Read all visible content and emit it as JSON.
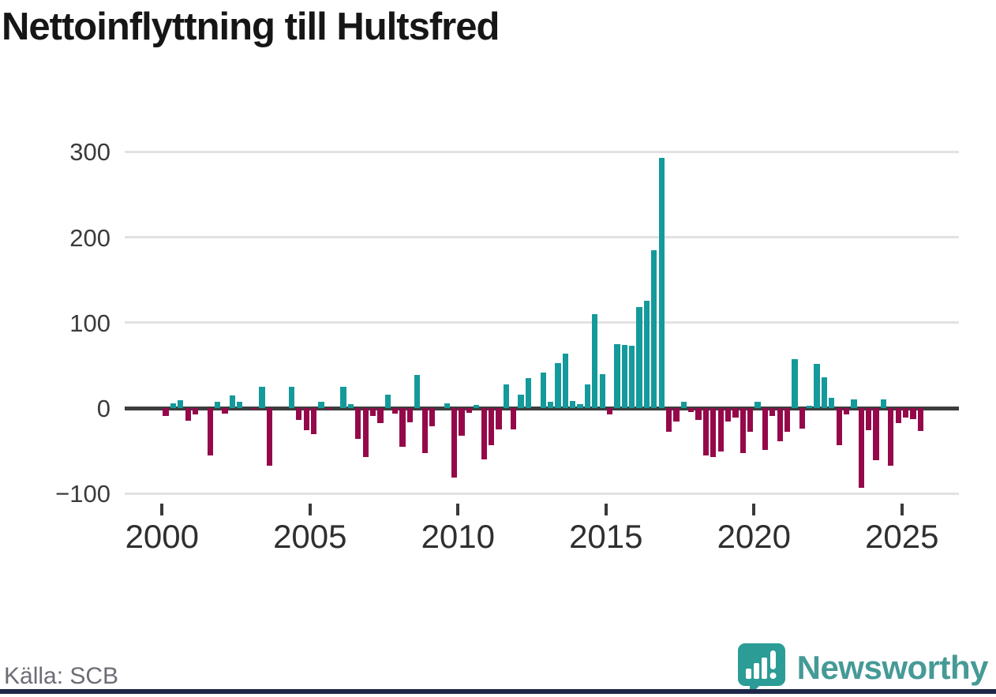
{
  "title": "Nettoinflyttning till Hultsfred",
  "source": "Källa: SCB",
  "brand": {
    "name": "Newsworthy",
    "logo_icon": "speech-bubble-bar-chart-icon",
    "text_color": "#459a96",
    "icon_color": "#2b9c96"
  },
  "colors": {
    "positive_bar": "#149a9b",
    "negative_bar": "#95094a",
    "zero_line": "#3d3d3d",
    "gridline": "#e2e2e2",
    "axis_text": "#2f2f2f",
    "source_text": "#6c6c75",
    "footer_strip": "#20264a"
  },
  "chart_data": {
    "type": "bar",
    "title": "Nettoinflyttning till Hultsfred",
    "period": "quarterly",
    "start": {
      "year": 2000,
      "quarter": 1
    },
    "end": {
      "year": 2025,
      "quarter": 3
    },
    "y_ticks": [
      300,
      200,
      100,
      0,
      -100
    ],
    "x_ticks": [
      2000,
      2005,
      2010,
      2015,
      2020,
      2025
    ],
    "ylim": [
      -102,
      307
    ],
    "grid": true,
    "legend": false,
    "values": [
      -12,
      6,
      9,
      -17,
      -10,
      0,
      -58,
      7,
      -9,
      15,
      7,
      0,
      -2,
      25,
      -70,
      0,
      0,
      25,
      -16,
      -28,
      -33,
      7,
      -3,
      0,
      25,
      5,
      -38,
      -60,
      -12,
      -20,
      16,
      -9,
      -48,
      -19,
      39,
      -55,
      -24,
      0,
      6,
      -84,
      -35,
      -8,
      4,
      -62,
      -46,
      -27,
      28,
      -27,
      16,
      35,
      0,
      42,
      7,
      53,
      64,
      8,
      5,
      28,
      110,
      40,
      -10,
      75,
      74,
      73,
      118,
      126,
      185,
      293,
      -30,
      -18,
      7,
      -7,
      -16,
      -58,
      -60,
      -53,
      -18,
      -13,
      -55,
      -30,
      7,
      -51,
      -12,
      -41,
      -30,
      57,
      -26,
      3,
      52,
      36,
      12,
      -46,
      -10,
      10,
      -96,
      -28,
      -63,
      10,
      -70,
      -20,
      -13,
      -15,
      -29
    ]
  }
}
